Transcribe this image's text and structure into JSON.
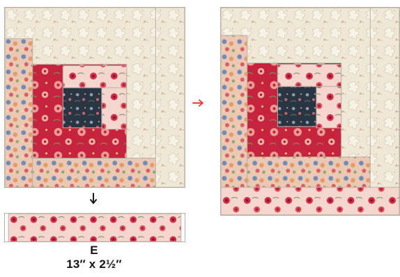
{
  "diagram": {
    "piece_letter": "E",
    "piece_size": "13″ x 2½″",
    "colors": {
      "cream": "#efe8d6",
      "cream_dark": "#d8cfbd",
      "red": "#c6233f",
      "red_dark": "#9f1a33",
      "pink": "#f4d6cf",
      "navy": "#2a3543",
      "orange": "#e69a66",
      "blue": "#6f8bb8",
      "green": "#8ca56f",
      "arrow_red": "#e3453b",
      "arrow_dark": "#1b1b1b"
    }
  }
}
